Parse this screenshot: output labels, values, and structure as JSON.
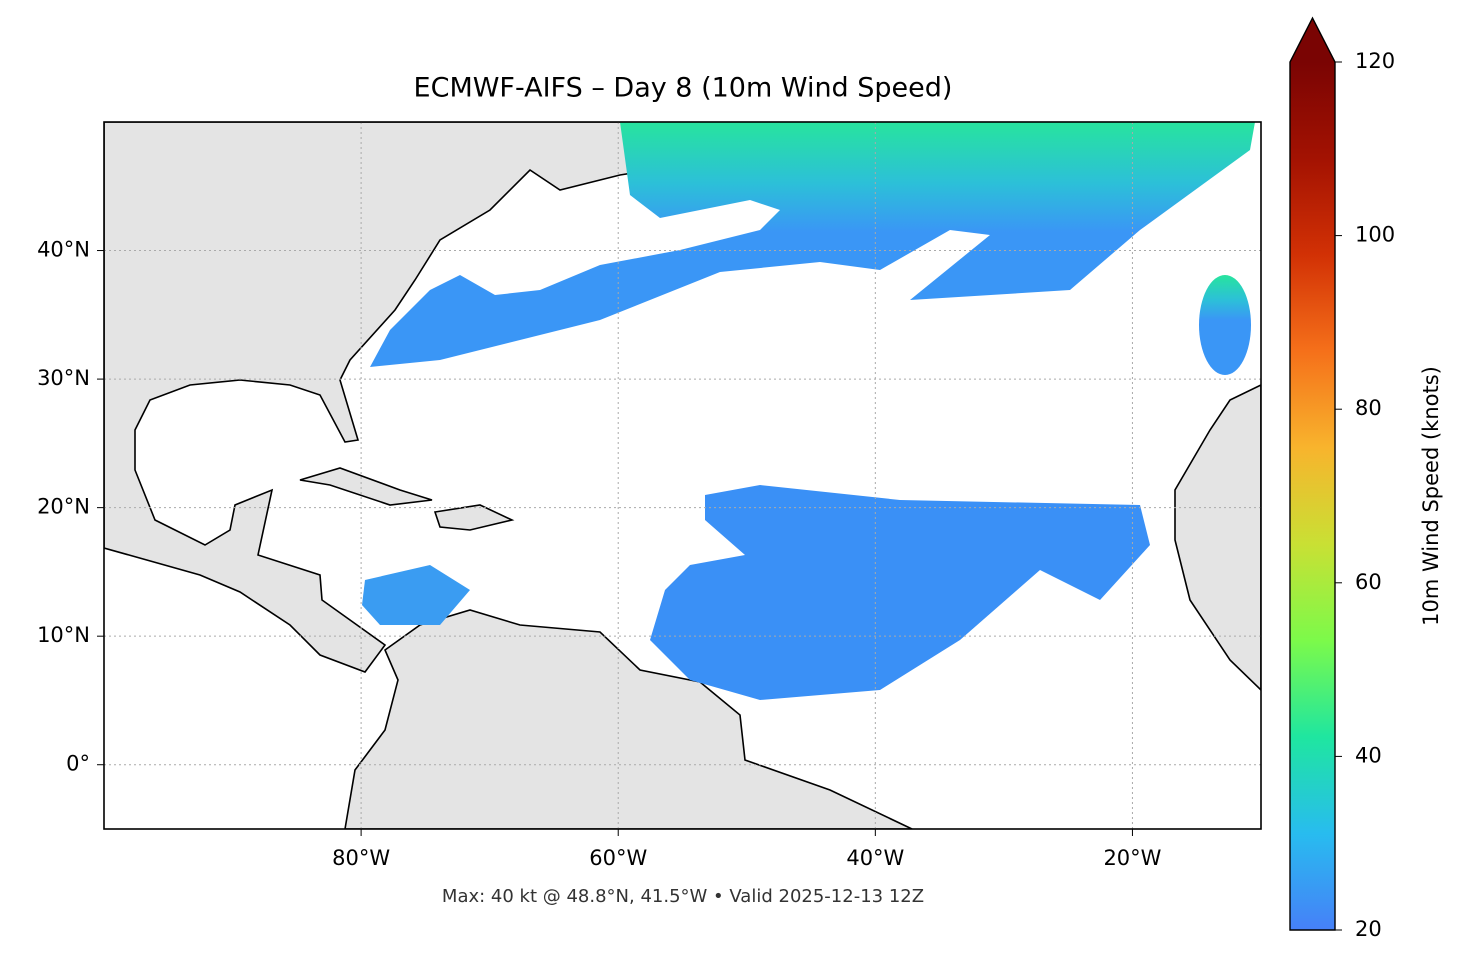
{
  "title": "ECMWF-AIFS – Day 8 (10m Wind Speed)",
  "footer": "Max: 40 kt @ 48.8°N, 41.5°W • Valid 2025-12-13 12Z",
  "map": {
    "xlim": [
      -100,
      -10
    ],
    "ylim": [
      -5,
      50
    ],
    "xticks": [
      {
        "value": -80,
        "label": "80°W"
      },
      {
        "value": -60,
        "label": "60°W"
      },
      {
        "value": -40,
        "label": "40°W"
      },
      {
        "value": -20,
        "label": "20°W"
      }
    ],
    "yticks": [
      {
        "value": 0,
        "label": "0°"
      },
      {
        "value": 10,
        "label": "10°N"
      },
      {
        "value": 20,
        "label": "20°N"
      },
      {
        "value": 30,
        "label": "30°N"
      },
      {
        "value": 40,
        "label": "40°N"
      }
    ],
    "grid": true
  },
  "colorbar": {
    "label": "10m Wind Speed (knots)",
    "lim": [
      20,
      120
    ],
    "ticks": [
      20,
      40,
      60,
      80,
      100,
      120
    ],
    "extend": "max",
    "colors": [
      "#4680f8",
      "#28bcef",
      "#1fe6a0",
      "#7cfa4a",
      "#c9e034",
      "#f8b42d",
      "#f5701a",
      "#d23105",
      "#a31202",
      "#7a0403"
    ]
  }
}
